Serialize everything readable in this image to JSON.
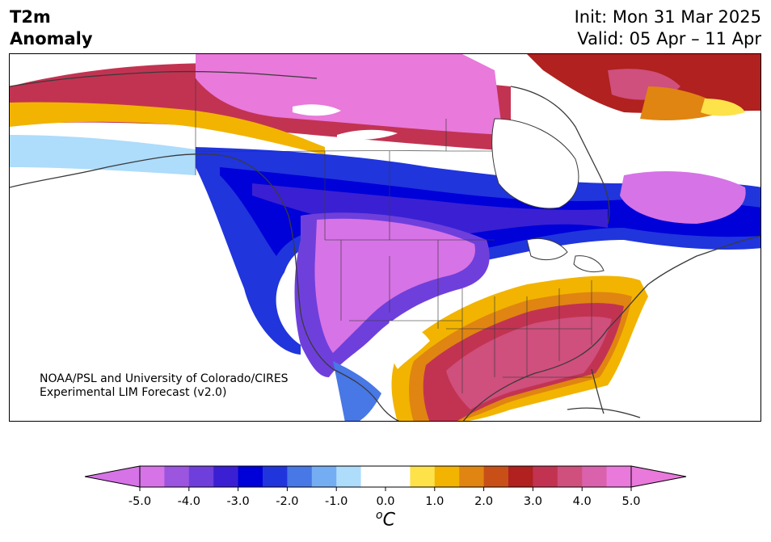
{
  "header": {
    "variable_line1": "T2m",
    "variable_line2": "Anomaly",
    "init_text": "Init: Mon 31 Mar 2025",
    "valid_text": "Valid: 05 Apr – 11 Apr"
  },
  "credit": {
    "line1": "NOAA/PSL and University of Colorado/CIRES",
    "line2": "Experimental LIM Forecast (v2.0)"
  },
  "colorbar": {
    "unit_base": "C",
    "unit_prefix": "o",
    "ticks": [
      "-5.0",
      "-4.0",
      "-3.0",
      "-2.0",
      "-1.0",
      "0.0",
      "1.0",
      "2.0",
      "3.0",
      "4.0",
      "5.0"
    ],
    "colors": [
      "#d673e6",
      "#9b55de",
      "#6f3fdc",
      "#3a20d2",
      "#0000d8",
      "#2035dc",
      "#4877e6",
      "#74adf2",
      "#aedcfb",
      "#ffffff",
      "#ffffff",
      "#fde24a",
      "#f2b400",
      "#e08511",
      "#c94f18",
      "#b0211f",
      "#c23352",
      "#cf4f7d",
      "#da62ac",
      "#e979db"
    ],
    "under_color": "#d673e6",
    "over_color": "#e979db"
  },
  "map": {
    "region": "North America",
    "land_outline_color": "#3a3a3a"
  }
}
